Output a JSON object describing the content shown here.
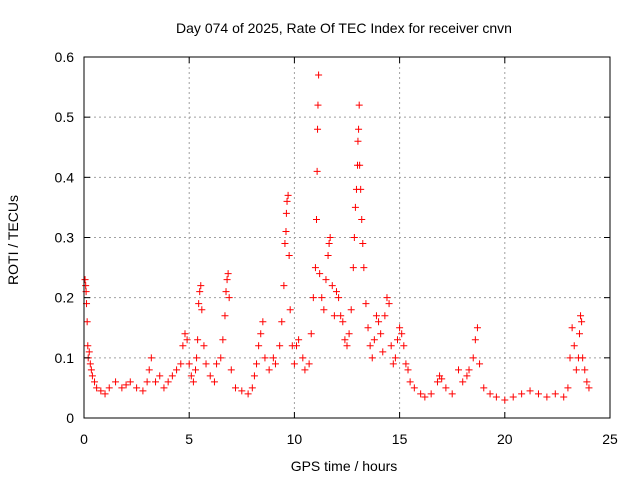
{
  "chart_data": {
    "type": "scatter",
    "title": "Day 074 of 2025, Rate Of TEC Index for receiver cnvn",
    "xlabel": "GPS time / hours",
    "ylabel": "ROTI / TECUs",
    "xlim": [
      0,
      25
    ],
    "ylim": [
      0,
      0.6
    ],
    "xticks": [
      "0",
      "5",
      "10",
      "15",
      "20",
      "25"
    ],
    "yticks": [
      "0",
      "0.1",
      "0.2",
      "0.3",
      "0.4",
      "0.5",
      "0.6"
    ],
    "grid": true,
    "marker": "plus",
    "color": "#ff0000",
    "points": [
      [
        0.05,
        0.23
      ],
      [
        0.08,
        0.22
      ],
      [
        0.1,
        0.21
      ],
      [
        0.12,
        0.19
      ],
      [
        0.15,
        0.16
      ],
      [
        0.18,
        0.12
      ],
      [
        0.2,
        0.1
      ],
      [
        0.25,
        0.11
      ],
      [
        0.3,
        0.09
      ],
      [
        0.35,
        0.08
      ],
      [
        0.4,
        0.07
      ],
      [
        0.5,
        0.06
      ],
      [
        0.6,
        0.05
      ],
      [
        0.8,
        0.045
      ],
      [
        1.0,
        0.04
      ],
      [
        1.2,
        0.05
      ],
      [
        1.5,
        0.06
      ],
      [
        1.8,
        0.05
      ],
      [
        2.0,
        0.055
      ],
      [
        2.2,
        0.06
      ],
      [
        2.5,
        0.05
      ],
      [
        2.8,
        0.045
      ],
      [
        3.0,
        0.06
      ],
      [
        3.1,
        0.08
      ],
      [
        3.2,
        0.1
      ],
      [
        3.4,
        0.06
      ],
      [
        3.6,
        0.07
      ],
      [
        3.8,
        0.05
      ],
      [
        4.0,
        0.06
      ],
      [
        4.2,
        0.07
      ],
      [
        4.4,
        0.08
      ],
      [
        4.6,
        0.09
      ],
      [
        4.7,
        0.12
      ],
      [
        4.8,
        0.14
      ],
      [
        4.9,
        0.13
      ],
      [
        5.0,
        0.09
      ],
      [
        5.1,
        0.07
      ],
      [
        5.2,
        0.06
      ],
      [
        5.3,
        0.08
      ],
      [
        5.35,
        0.1
      ],
      [
        5.4,
        0.13
      ],
      [
        5.45,
        0.19
      ],
      [
        5.5,
        0.21
      ],
      [
        5.55,
        0.22
      ],
      [
        5.6,
        0.18
      ],
      [
        5.7,
        0.12
      ],
      [
        5.8,
        0.09
      ],
      [
        6.0,
        0.07
      ],
      [
        6.2,
        0.06
      ],
      [
        6.3,
        0.09
      ],
      [
        6.5,
        0.1
      ],
      [
        6.6,
        0.13
      ],
      [
        6.7,
        0.17
      ],
      [
        6.75,
        0.21
      ],
      [
        6.8,
        0.23
      ],
      [
        6.85,
        0.24
      ],
      [
        6.9,
        0.2
      ],
      [
        7.0,
        0.08
      ],
      [
        7.2,
        0.05
      ],
      [
        7.5,
        0.045
      ],
      [
        7.8,
        0.04
      ],
      [
        8.0,
        0.05
      ],
      [
        8.1,
        0.07
      ],
      [
        8.2,
        0.09
      ],
      [
        8.3,
        0.12
      ],
      [
        8.4,
        0.14
      ],
      [
        8.5,
        0.16
      ],
      [
        8.6,
        0.1
      ],
      [
        8.8,
        0.08
      ],
      [
        9.0,
        0.1
      ],
      [
        9.1,
        0.09
      ],
      [
        9.3,
        0.12
      ],
      [
        9.4,
        0.16
      ],
      [
        9.5,
        0.22
      ],
      [
        9.55,
        0.29
      ],
      [
        9.6,
        0.31
      ],
      [
        9.62,
        0.34
      ],
      [
        9.65,
        0.36
      ],
      [
        9.7,
        0.37
      ],
      [
        9.75,
        0.27
      ],
      [
        9.8,
        0.18
      ],
      [
        9.9,
        0.12
      ],
      [
        10.0,
        0.09
      ],
      [
        10.1,
        0.12
      ],
      [
        10.2,
        0.13
      ],
      [
        10.4,
        0.1
      ],
      [
        10.5,
        0.08
      ],
      [
        10.7,
        0.09
      ],
      [
        10.8,
        0.14
      ],
      [
        10.9,
        0.2
      ],
      [
        11.0,
        0.25
      ],
      [
        11.05,
        0.33
      ],
      [
        11.08,
        0.41
      ],
      [
        11.1,
        0.48
      ],
      [
        11.12,
        0.52
      ],
      [
        11.15,
        0.57
      ],
      [
        11.2,
        0.24
      ],
      [
        11.3,
        0.2
      ],
      [
        11.4,
        0.18
      ],
      [
        11.5,
        0.23
      ],
      [
        11.6,
        0.27
      ],
      [
        11.65,
        0.29
      ],
      [
        11.7,
        0.3
      ],
      [
        11.8,
        0.22
      ],
      [
        11.9,
        0.17
      ],
      [
        12.0,
        0.21
      ],
      [
        12.1,
        0.2
      ],
      [
        12.2,
        0.17
      ],
      [
        12.3,
        0.16
      ],
      [
        12.4,
        0.13
      ],
      [
        12.5,
        0.12
      ],
      [
        12.6,
        0.14
      ],
      [
        12.7,
        0.18
      ],
      [
        12.8,
        0.25
      ],
      [
        12.85,
        0.3
      ],
      [
        12.9,
        0.35
      ],
      [
        12.95,
        0.38
      ],
      [
        13.0,
        0.42
      ],
      [
        13.02,
        0.46
      ],
      [
        13.05,
        0.48
      ],
      [
        13.08,
        0.52
      ],
      [
        13.1,
        0.42
      ],
      [
        13.15,
        0.38
      ],
      [
        13.2,
        0.33
      ],
      [
        13.25,
        0.29
      ],
      [
        13.3,
        0.25
      ],
      [
        13.4,
        0.19
      ],
      [
        13.5,
        0.15
      ],
      [
        13.6,
        0.12
      ],
      [
        13.7,
        0.1
      ],
      [
        13.8,
        0.13
      ],
      [
        13.9,
        0.17
      ],
      [
        14.0,
        0.16
      ],
      [
        14.1,
        0.14
      ],
      [
        14.2,
        0.11
      ],
      [
        14.3,
        0.17
      ],
      [
        14.4,
        0.2
      ],
      [
        14.5,
        0.19
      ],
      [
        14.6,
        0.12
      ],
      [
        14.7,
        0.09
      ],
      [
        14.8,
        0.1
      ],
      [
        14.9,
        0.13
      ],
      [
        15.0,
        0.15
      ],
      [
        15.1,
        0.14
      ],
      [
        15.2,
        0.12
      ],
      [
        15.3,
        0.09
      ],
      [
        15.4,
        0.08
      ],
      [
        15.5,
        0.06
      ],
      [
        15.7,
        0.05
      ],
      [
        16.0,
        0.04
      ],
      [
        16.2,
        0.035
      ],
      [
        16.5,
        0.04
      ],
      [
        16.8,
        0.06
      ],
      [
        16.9,
        0.07
      ],
      [
        17.0,
        0.065
      ],
      [
        17.2,
        0.05
      ],
      [
        17.5,
        0.04
      ],
      [
        17.8,
        0.08
      ],
      [
        18.0,
        0.06
      ],
      [
        18.2,
        0.07
      ],
      [
        18.3,
        0.08
      ],
      [
        18.5,
        0.1
      ],
      [
        18.6,
        0.13
      ],
      [
        18.7,
        0.15
      ],
      [
        18.8,
        0.09
      ],
      [
        19.0,
        0.05
      ],
      [
        19.3,
        0.04
      ],
      [
        19.6,
        0.035
      ],
      [
        20.0,
        0.03
      ],
      [
        20.4,
        0.035
      ],
      [
        20.8,
        0.04
      ],
      [
        21.2,
        0.045
      ],
      [
        21.6,
        0.04
      ],
      [
        22.0,
        0.035
      ],
      [
        22.4,
        0.04
      ],
      [
        22.8,
        0.035
      ],
      [
        23.0,
        0.05
      ],
      [
        23.1,
        0.1
      ],
      [
        23.2,
        0.15
      ],
      [
        23.3,
        0.12
      ],
      [
        23.4,
        0.08
      ],
      [
        23.5,
        0.1
      ],
      [
        23.55,
        0.14
      ],
      [
        23.6,
        0.17
      ],
      [
        23.65,
        0.16
      ],
      [
        23.7,
        0.1
      ],
      [
        23.8,
        0.08
      ],
      [
        23.9,
        0.06
      ],
      [
        24.0,
        0.05
      ]
    ]
  }
}
